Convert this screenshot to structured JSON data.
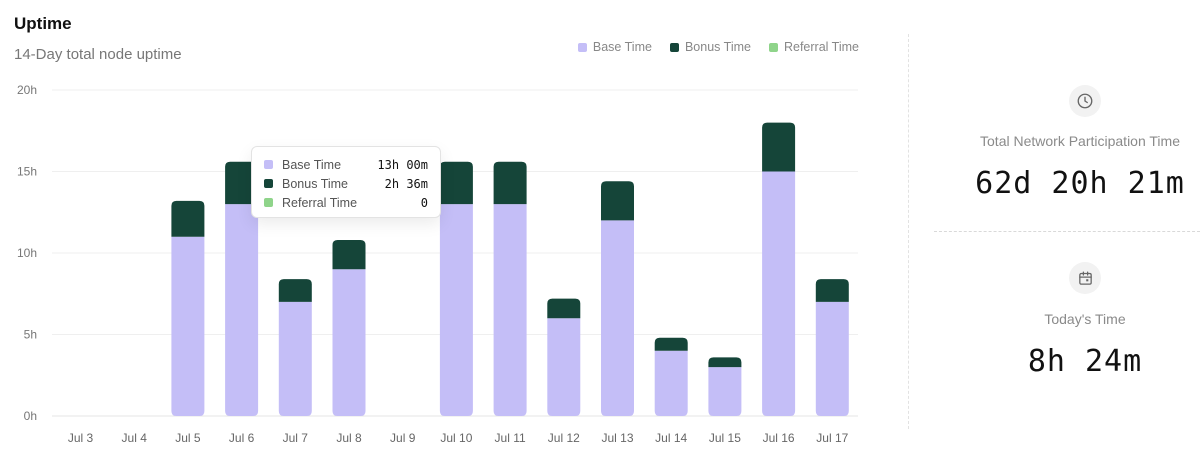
{
  "header": {
    "title": "Uptime",
    "subtitle": "14-Day total node uptime"
  },
  "legend": [
    {
      "label": "Base Time",
      "color": "#c4bef7"
    },
    {
      "label": "Bonus Time",
      "color": "#154539"
    },
    {
      "label": "Referral Time",
      "color": "#8fd48a"
    }
  ],
  "tooltip": {
    "rows": [
      {
        "label": "Base Time",
        "value": "13h 00m",
        "color": "#c4bef7"
      },
      {
        "label": "Bonus Time",
        "value": "2h 36m",
        "color": "#154539"
      },
      {
        "label": "Referral Time",
        "value": "0",
        "color": "#8fd48a"
      }
    ]
  },
  "stats": {
    "total": {
      "label": "Total Network Participation Time",
      "value": "62d 20h 21m",
      "icon": "clock-icon"
    },
    "today": {
      "label": "Today's Time",
      "value": "8h 24m",
      "icon": "calendar-icon"
    }
  },
  "chart_data": {
    "type": "bar",
    "stacked": true,
    "categories": [
      "Jul 3",
      "Jul 4",
      "Jul 5",
      "Jul 6",
      "Jul 7",
      "Jul 8",
      "Jul 9",
      "Jul 10",
      "Jul 11",
      "Jul 12",
      "Jul 13",
      "Jul 14",
      "Jul 15",
      "Jul 16",
      "Jul 17"
    ],
    "series": [
      {
        "name": "Base Time",
        "color": "#c4bef7",
        "values": [
          0,
          0,
          11,
          13,
          7,
          9,
          0,
          13,
          13,
          6,
          12,
          4,
          3,
          15,
          7
        ]
      },
      {
        "name": "Bonus Time",
        "color": "#154539",
        "values": [
          0,
          0,
          2.2,
          2.6,
          1.4,
          1.8,
          0,
          2.6,
          2.6,
          1.2,
          2.4,
          0.8,
          0.6,
          3,
          1.4
        ]
      },
      {
        "name": "Referral Time",
        "color": "#8fd48a",
        "values": [
          0,
          0,
          0,
          0,
          0,
          0,
          0,
          0,
          0,
          0,
          0,
          0,
          0,
          0,
          0
        ]
      }
    ],
    "yticks": [
      "0h",
      "5h",
      "10h",
      "15h",
      "20h"
    ],
    "ylim": [
      0,
      20
    ],
    "grid": true,
    "legend_position": "top-right"
  }
}
